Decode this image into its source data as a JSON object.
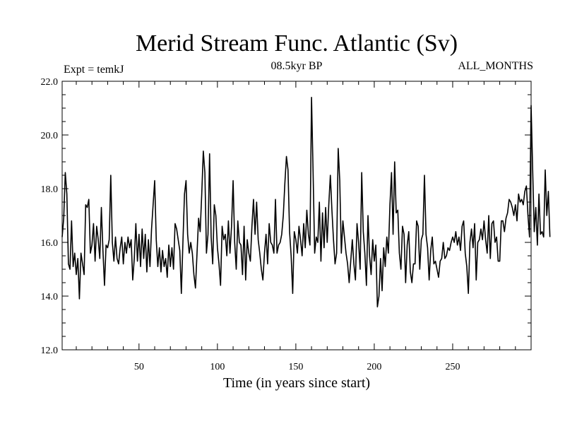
{
  "chart_data": {
    "type": "line",
    "title": "Merid Stream Func. Atlantic (Sv)",
    "experiment_label": "Expt = temkJ",
    "period_label": "08.5kyr BP",
    "months_label": "ALL_MONTHS",
    "xlabel": "Time (in years since start)",
    "ylabel": "",
    "xlim": [
      1,
      300
    ],
    "ylim": [
      12.0,
      22.0
    ],
    "x_ticks": [
      50,
      100,
      150,
      200,
      250
    ],
    "y_ticks": [
      "12.0",
      "14.0",
      "16.0",
      "18.0",
      "20.0",
      "22.0"
    ],
    "grid": false,
    "x_start": 1,
    "x_step": 1,
    "values": [
      16.2,
      16.9,
      18.6,
      17.8,
      15.2,
      15.0,
      16.8,
      15.1,
      15.6,
      14.8,
      15.4,
      13.9,
      15.6,
      15.2,
      14.8,
      17.4,
      17.3,
      17.6,
      15.6,
      15.9,
      16.7,
      15.3,
      16.6,
      16.1,
      15.4,
      17.3,
      15.7,
      14.4,
      15.9,
      15.8,
      16.1,
      18.5,
      16.0,
      15.3,
      16.2,
      15.4,
      15.2,
      15.8,
      16.2,
      15.2,
      16.0,
      15.6,
      16.2,
      15.8,
      16.1,
      14.6,
      15.4,
      16.7,
      15.3,
      16.3,
      15.1,
      16.5,
      15.4,
      16.3,
      14.9,
      16.1,
      15.1,
      16.5,
      17.4,
      18.3,
      16.1,
      15.1,
      15.8,
      14.9,
      15.7,
      15.1,
      15.4,
      14.7,
      15.9,
      15.1,
      15.8,
      15.0,
      16.7,
      16.5,
      16.1,
      15.7,
      14.1,
      16.0,
      17.8,
      18.3,
      16.3,
      15.6,
      16.0,
      15.6,
      14.8,
      14.3,
      15.6,
      16.9,
      16.4,
      17.8,
      19.4,
      18.6,
      15.6,
      16.3,
      19.3,
      16.2,
      15.2,
      17.4,
      17.0,
      15.8,
      15.2,
      14.4,
      16.6,
      16.1,
      16.3,
      15.5,
      16.8,
      15.6,
      16.6,
      18.3,
      16.0,
      15.0,
      16.8,
      16.0,
      15.9,
      14.8,
      16.6,
      14.6,
      16.1,
      15.6,
      15.3,
      16.6,
      17.6,
      16.3,
      17.5,
      16.1,
      15.6,
      15.0,
      14.6,
      15.6,
      16.3,
      15.2,
      16.7,
      16.0,
      15.9,
      15.6,
      17.6,
      15.6,
      15.9,
      16.0,
      16.3,
      17.0,
      18.2,
      19.2,
      18.7,
      16.4,
      15.5,
      14.1,
      16.4,
      16.1,
      15.6,
      16.6,
      16.1,
      15.5,
      16.7,
      15.8,
      17.2,
      16.3,
      15.9,
      21.4,
      18.6,
      15.6,
      16.2,
      16.0,
      17.5,
      15.3,
      17.1,
      15.8,
      17.3,
      16.0,
      17.4,
      18.5,
      17.2,
      16.1,
      15.2,
      15.6,
      19.5,
      18.3,
      15.6,
      16.8,
      16.2,
      15.6,
      15.2,
      14.5,
      15.3,
      16.1,
      15.2,
      14.6,
      16.7,
      16.0,
      15.0,
      18.6,
      16.4,
      15.6,
      14.4,
      17.0,
      15.5,
      14.8,
      16.1,
      15.3,
      15.9,
      13.6,
      14.0,
      15.4,
      14.2,
      15.8,
      15.1,
      16.2,
      15.6,
      17.4,
      18.6,
      16.3,
      19.0,
      17.1,
      17.2,
      15.6,
      15.0,
      16.6,
      16.3,
      14.5,
      15.9,
      16.4,
      14.9,
      14.5,
      15.2,
      15.2,
      16.8,
      16.6,
      15.0,
      16.1,
      16.3,
      18.5,
      16.3,
      15.8,
      14.6,
      15.7,
      16.2,
      15.2,
      15.3,
      15.0,
      14.7,
      15.3,
      15.4,
      16.0,
      15.4,
      15.5,
      15.8,
      15.7,
      16.0,
      16.2,
      16.0,
      16.4,
      15.9,
      16.2,
      15.7,
      16.6,
      16.8,
      15.6,
      15.1,
      14.1,
      16.0,
      16.5,
      15.8,
      16.7,
      14.6,
      16.0,
      16.1,
      16.5,
      16.1,
      16.8,
      16.1,
      15.6,
      17.0,
      15.4,
      16.7,
      16.8,
      16.0,
      16.2,
      15.3,
      15.3,
      16.8,
      16.8,
      16.4,
      16.9,
      17.1,
      17.6,
      17.5,
      17.3,
      17.0,
      17.4,
      16.8,
      17.8,
      17.5,
      17.6,
      17.4,
      17.9,
      18.1,
      17.0,
      16.2,
      21.1,
      18.7,
      16.4,
      17.3,
      15.9,
      17.8,
      16.3,
      16.4,
      16.2,
      18.7,
      17.0,
      17.9,
      16.2
    ]
  }
}
